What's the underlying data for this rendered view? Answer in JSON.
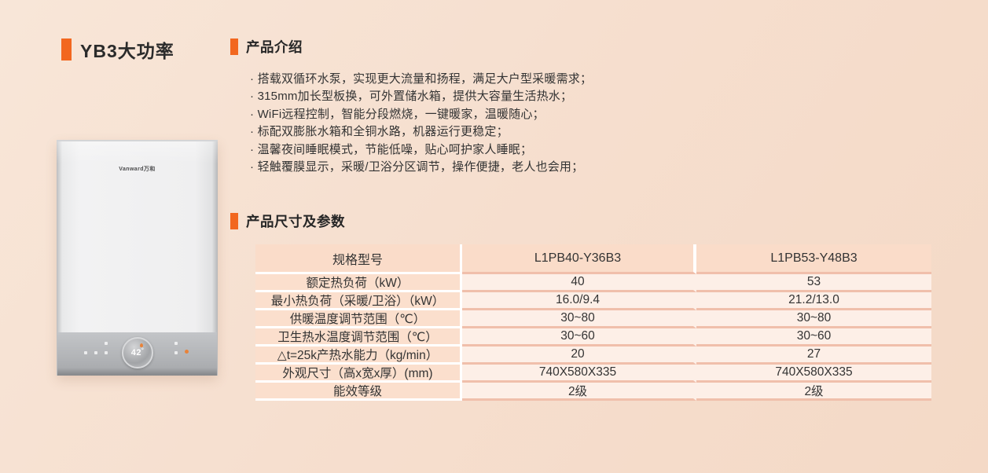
{
  "page": {
    "title": "YB3大功率"
  },
  "colors": {
    "accent": "#f2671f",
    "background_start": "#f8e6d8",
    "background_end": "#f4d9c6",
    "table_header_bg": "#fadcc9",
    "table_label_bg": "#fbdfcd",
    "table_value_bg": "#fdefe7",
    "table_separator": "#f0bfab"
  },
  "product_image": {
    "brand_logo": "Vanward万和",
    "display_temp": "42",
    "display_unit": "°"
  },
  "intro": {
    "heading": "产品介绍",
    "bullets": [
      "· 搭载双循环水泵，实现更大流量和扬程，满足大户型采暖需求；",
      "· 315mm加长型板换，可外置储水箱，提供大容量生活热水；",
      "· WiFi远程控制，智能分段燃烧，一键暖家，温暖随心；",
      "· 标配双膨胀水箱和全铜水路，机器运行更稳定；",
      "· 温馨夜间睡眠模式，节能低噪，贴心呵护家人睡眠；",
      "· 轻触覆膜显示，采暖/卫浴分区调节，操作便捷，老人也会用；"
    ]
  },
  "specs": {
    "heading": "产品尺寸及参数",
    "table": {
      "header": [
        "规格型号",
        "L1PB40-Y36B3",
        "L1PB53-Y48B3"
      ],
      "rows": [
        [
          "额定热负荷（kW）",
          "40",
          "53"
        ],
        [
          "最小热负荷（采暖/卫浴）（kW）",
          "16.0/9.4",
          "21.2/13.0"
        ],
        [
          "供暖温度调节范围（℃）",
          "30~80",
          "30~80"
        ],
        [
          "卫生热水温度调节范围（℃）",
          "30~60",
          "30~60"
        ],
        [
          "△t=25k产热水能力（kg/min）",
          "20",
          "27"
        ],
        [
          "外观尺寸（高x宽x厚）(mm)",
          "740X580X335",
          "740X580X335"
        ],
        [
          "能效等级",
          "2级",
          "2级"
        ]
      ]
    }
  }
}
